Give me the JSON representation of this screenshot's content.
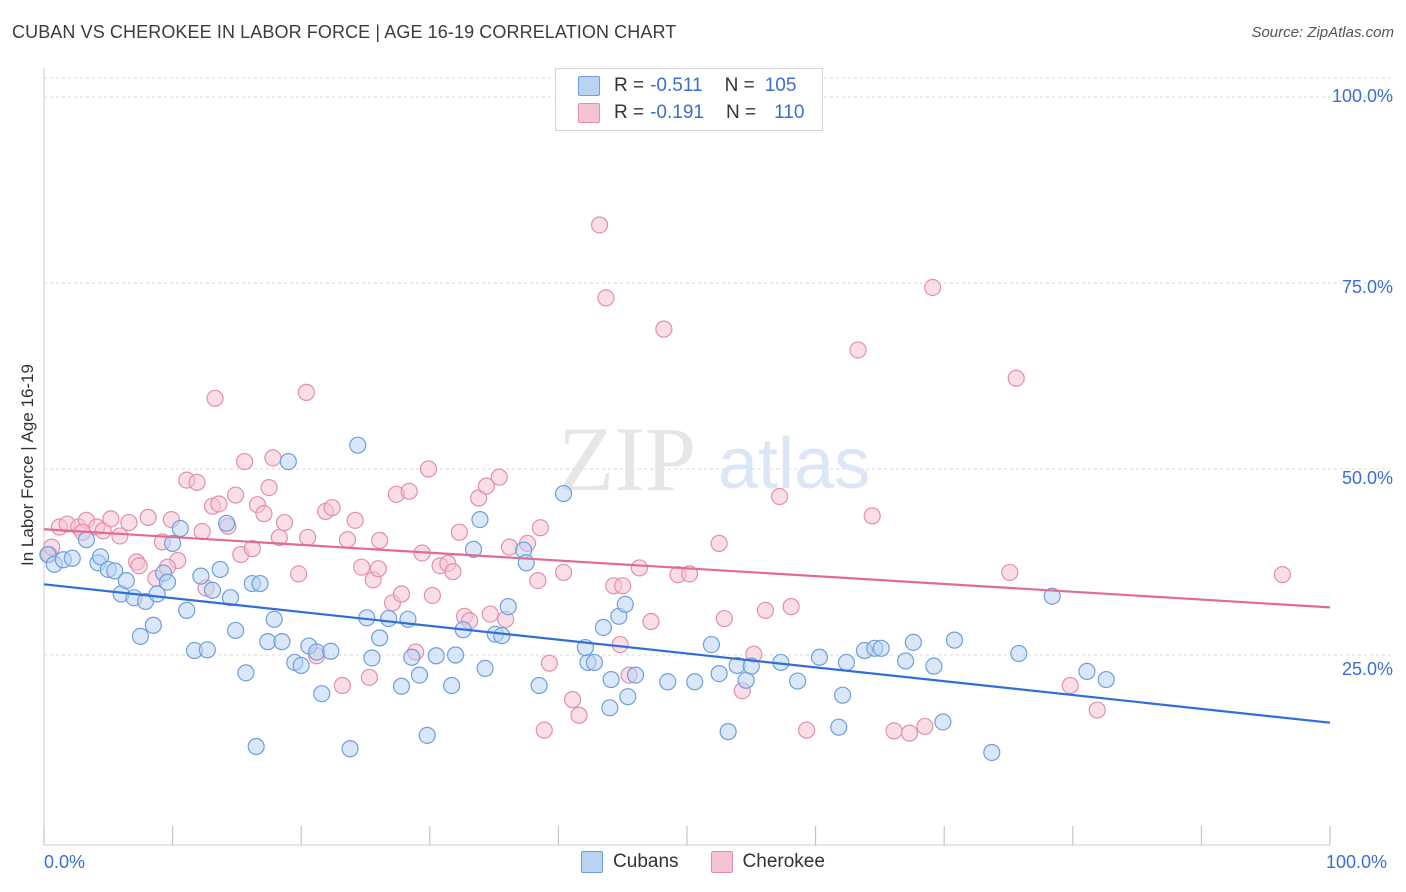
{
  "title": "CUBAN VS CHEROKEE IN LABOR FORCE | AGE 16-19 CORRELATION CHART",
  "source": "Source: ZipAtlas.com",
  "watermark": {
    "zip": "ZIP",
    "atlas": "atlas"
  },
  "legend": {
    "rows": [
      {
        "r_label": "R =",
        "r_value": "-0.511",
        "n_label": "N =",
        "n_value": "105"
      },
      {
        "r_label": "R =",
        "r_value": "-0.191",
        "n_label": "N =",
        "n_value": "110"
      }
    ]
  },
  "bottom_legend": {
    "cubans": "Cubans",
    "cherokee": "Cherokee"
  },
  "colors": {
    "cubans_fill": "#b9d3f3",
    "cubans_stroke": "#6e9fdc",
    "cubans_line": "#2f6fd6",
    "cherokee_fill": "#f6c3d3",
    "cherokee_stroke": "#e48faa",
    "cherokee_line": "#e26b95",
    "axis_label": "#3a6fd0"
  },
  "chart_data": {
    "type": "scatter",
    "title": "CUBAN VS CHEROKEE IN LABOR FORCE | AGE 16-19 CORRELATION CHART",
    "xlabel": "",
    "ylabel": "In Labor Force | Age 16-19",
    "xlim": [
      0,
      100
    ],
    "ylim": [
      0,
      105
    ],
    "x_tick_labels": [
      "0.0%",
      "100.0%"
    ],
    "y_ticks": [
      25,
      50,
      75,
      100
    ],
    "y_tick_labels": [
      "25.0%",
      "50.0%",
      "75.0%",
      "100.0%"
    ],
    "grid": true,
    "series": [
      {
        "name": "Cubans",
        "R": -0.511,
        "N": 105,
        "trend": {
          "x": [
            0,
            100
          ],
          "y": [
            34.5,
            15.9
          ]
        },
        "points": [
          [
            0.3,
            38.5
          ],
          [
            0.8,
            37.2
          ],
          [
            1.5,
            37.8
          ],
          [
            2.2,
            38.0
          ],
          [
            3.3,
            40.5
          ],
          [
            4.2,
            37.4
          ],
          [
            4.4,
            38.2
          ],
          [
            5.0,
            36.5
          ],
          [
            5.5,
            36.3
          ],
          [
            6.0,
            33.2
          ],
          [
            6.4,
            35.0
          ],
          [
            7.0,
            32.7
          ],
          [
            7.5,
            27.5
          ],
          [
            7.9,
            32.2
          ],
          [
            8.5,
            29.0
          ],
          [
            8.8,
            33.2
          ],
          [
            9.3,
            36.0
          ],
          [
            9.6,
            34.8
          ],
          [
            10.0,
            40.0
          ],
          [
            10.6,
            42.0
          ],
          [
            11.1,
            31.0
          ],
          [
            11.7,
            25.6
          ],
          [
            12.2,
            35.6
          ],
          [
            12.7,
            25.7
          ],
          [
            13.1,
            33.7
          ],
          [
            13.7,
            36.5
          ],
          [
            14.2,
            42.7
          ],
          [
            14.5,
            32.7
          ],
          [
            14.9,
            28.3
          ],
          [
            15.7,
            22.6
          ],
          [
            16.2,
            34.6
          ],
          [
            16.8,
            34.6
          ],
          [
            16.5,
            12.7
          ],
          [
            17.4,
            26.8
          ],
          [
            17.9,
            29.8
          ],
          [
            18.5,
            26.8
          ],
          [
            19.0,
            51.0
          ],
          [
            19.5,
            24.0
          ],
          [
            20.0,
            23.6
          ],
          [
            20.6,
            26.2
          ],
          [
            21.2,
            25.4
          ],
          [
            21.6,
            19.8
          ],
          [
            22.3,
            25.5
          ],
          [
            23.8,
            12.4
          ],
          [
            24.4,
            53.2
          ],
          [
            25.1,
            30.0
          ],
          [
            25.5,
            24.6
          ],
          [
            26.1,
            27.3
          ],
          [
            26.8,
            29.9
          ],
          [
            27.8,
            20.8
          ],
          [
            28.3,
            29.8
          ],
          [
            28.6,
            24.7
          ],
          [
            29.2,
            22.3
          ],
          [
            29.8,
            14.2
          ],
          [
            30.5,
            24.9
          ],
          [
            31.7,
            20.9
          ],
          [
            32.0,
            25.0
          ],
          [
            32.6,
            28.4
          ],
          [
            33.4,
            39.2
          ],
          [
            33.9,
            43.2
          ],
          [
            34.3,
            23.2
          ],
          [
            35.1,
            27.8
          ],
          [
            35.6,
            27.6
          ],
          [
            36.1,
            31.5
          ],
          [
            37.3,
            39.1
          ],
          [
            37.5,
            37.4
          ],
          [
            38.5,
            20.9
          ],
          [
            40.4,
            46.7
          ],
          [
            42.3,
            24.0
          ],
          [
            42.8,
            24.0
          ],
          [
            43.5,
            28.7
          ],
          [
            44.0,
            17.9
          ],
          [
            44.1,
            21.7
          ],
          [
            44.7,
            30.2
          ],
          [
            45.2,
            31.8
          ],
          [
            45.4,
            19.4
          ],
          [
            46.0,
            22.3
          ],
          [
            48.5,
            21.4
          ],
          [
            50.6,
            21.4
          ],
          [
            51.9,
            26.4
          ],
          [
            52.5,
            22.5
          ],
          [
            53.2,
            14.7
          ],
          [
            53.9,
            23.6
          ],
          [
            54.6,
            21.6
          ],
          [
            55.0,
            23.5
          ],
          [
            57.3,
            24.0
          ],
          [
            58.6,
            21.5
          ],
          [
            60.3,
            24.7
          ],
          [
            61.8,
            15.3
          ],
          [
            62.1,
            19.6
          ],
          [
            62.4,
            24.0
          ],
          [
            63.8,
            25.6
          ],
          [
            64.6,
            25.9
          ],
          [
            65.1,
            25.9
          ],
          [
            67.0,
            24.2
          ],
          [
            67.6,
            26.7
          ],
          [
            69.2,
            23.5
          ],
          [
            69.9,
            16.0
          ],
          [
            70.8,
            27.0
          ],
          [
            73.7,
            11.9
          ],
          [
            75.8,
            25.2
          ],
          [
            78.4,
            32.9
          ],
          [
            81.1,
            22.8
          ],
          [
            82.6,
            21.7
          ],
          [
            42.1,
            26.0
          ]
        ]
      },
      {
        "name": "Cherokee",
        "R": -0.191,
        "N": 110,
        "trend": {
          "x": [
            0,
            100
          ],
          "y": [
            41.9,
            31.4
          ]
        },
        "points": [
          [
            0.4,
            38.5
          ],
          [
            1.2,
            42.2
          ],
          [
            1.8,
            42.6
          ],
          [
            2.7,
            42.2
          ],
          [
            3.3,
            43.1
          ],
          [
            4.1,
            42.2
          ],
          [
            4.6,
            41.7
          ],
          [
            5.2,
            43.3
          ],
          [
            5.9,
            41.0
          ],
          [
            6.6,
            42.8
          ],
          [
            7.2,
            37.5
          ],
          [
            7.4,
            37.0
          ],
          [
            8.1,
            43.5
          ],
          [
            8.7,
            35.3
          ],
          [
            9.2,
            40.2
          ],
          [
            9.9,
            43.2
          ],
          [
            10.4,
            37.7
          ],
          [
            11.1,
            48.5
          ],
          [
            11.9,
            48.2
          ],
          [
            12.3,
            41.6
          ],
          [
            12.6,
            34.0
          ],
          [
            13.1,
            45.0
          ],
          [
            13.3,
            59.5
          ],
          [
            13.6,
            45.3
          ],
          [
            14.3,
            42.3
          ],
          [
            14.9,
            46.5
          ],
          [
            15.3,
            38.5
          ],
          [
            15.6,
            51.0
          ],
          [
            16.2,
            39.3
          ],
          [
            16.6,
            45.2
          ],
          [
            17.1,
            44.0
          ],
          [
            17.5,
            47.5
          ],
          [
            17.8,
            51.5
          ],
          [
            18.3,
            40.8
          ],
          [
            18.7,
            42.8
          ],
          [
            19.8,
            35.9
          ],
          [
            20.4,
            60.3
          ],
          [
            20.5,
            40.8
          ],
          [
            21.2,
            24.9
          ],
          [
            21.9,
            44.3
          ],
          [
            22.4,
            44.8
          ],
          [
            23.2,
            20.9
          ],
          [
            23.6,
            40.5
          ],
          [
            24.2,
            43.1
          ],
          [
            24.7,
            36.8
          ],
          [
            25.3,
            22.0
          ],
          [
            25.6,
            35.1
          ],
          [
            26.1,
            40.4
          ],
          [
            27.1,
            32.0
          ],
          [
            27.4,
            46.6
          ],
          [
            27.8,
            33.2
          ],
          [
            28.4,
            47.0
          ],
          [
            28.9,
            25.4
          ],
          [
            29.4,
            38.7
          ],
          [
            29.9,
            50.0
          ],
          [
            30.2,
            33.0
          ],
          [
            30.8,
            37.0
          ],
          [
            31.4,
            37.3
          ],
          [
            31.8,
            36.2
          ],
          [
            32.3,
            41.5
          ],
          [
            32.7,
            30.2
          ],
          [
            33.1,
            29.6
          ],
          [
            33.8,
            46.1
          ],
          [
            34.4,
            47.7
          ],
          [
            34.7,
            30.5
          ],
          [
            35.4,
            48.9
          ],
          [
            35.9,
            29.8
          ],
          [
            36.2,
            39.5
          ],
          [
            37.6,
            40.0
          ],
          [
            38.4,
            35.0
          ],
          [
            38.6,
            42.1
          ],
          [
            38.9,
            14.9
          ],
          [
            39.3,
            23.9
          ],
          [
            40.4,
            36.1
          ],
          [
            41.1,
            19.0
          ],
          [
            41.6,
            16.9
          ],
          [
            43.2,
            82.8
          ],
          [
            43.7,
            73.0
          ],
          [
            44.3,
            34.3
          ],
          [
            44.8,
            26.4
          ],
          [
            45.5,
            22.3
          ],
          [
            46.3,
            36.7
          ],
          [
            47.2,
            29.5
          ],
          [
            48.2,
            68.8
          ],
          [
            49.3,
            35.8
          ],
          [
            50.2,
            35.9
          ],
          [
            52.5,
            40.0
          ],
          [
            52.9,
            29.9
          ],
          [
            54.3,
            20.2
          ],
          [
            55.2,
            25.1
          ],
          [
            56.1,
            31.0
          ],
          [
            57.2,
            46.3
          ],
          [
            58.1,
            31.5
          ],
          [
            59.3,
            14.9
          ],
          [
            63.3,
            66.0
          ],
          [
            64.4,
            43.7
          ],
          [
            66.1,
            14.8
          ],
          [
            67.3,
            14.5
          ],
          [
            68.5,
            15.4
          ],
          [
            69.1,
            74.4
          ],
          [
            75.1,
            36.1
          ],
          [
            75.6,
            62.2
          ],
          [
            79.8,
            20.9
          ],
          [
            81.9,
            17.6
          ],
          [
            96.3,
            35.8
          ],
          [
            0.6,
            39.5
          ],
          [
            3.0,
            41.5
          ],
          [
            9.6,
            36.8
          ],
          [
            26.0,
            36.6
          ],
          [
            45.0,
            34.3
          ]
        ]
      }
    ]
  }
}
